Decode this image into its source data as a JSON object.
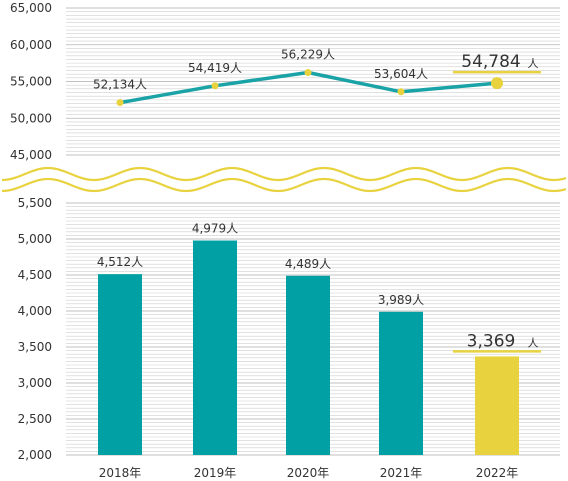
{
  "chart_data": [
    {
      "type": "line",
      "title": "",
      "xlabel": "",
      "ylabel": "",
      "categories": [
        "2018年",
        "2019年",
        "2020年",
        "2021年",
        "2022年"
      ],
      "values": [
        52134,
        54419,
        56229,
        53604,
        54784
      ],
      "data_labels": [
        "52,134人",
        "54,419人",
        "56,229人",
        "53,604人",
        "54,784"
      ],
      "highlight_unit": "人",
      "highlight_index": 4,
      "ylim": [
        45000,
        65000
      ],
      "yticks": [
        45000,
        50000,
        55000,
        60000,
        65000
      ],
      "ytick_labels": [
        "45,000",
        "50,000",
        "55,000",
        "60,000",
        "65,000"
      ],
      "grid": true,
      "line_color": "#1aa3a6",
      "marker_color": "#e8d23e"
    },
    {
      "type": "bar",
      "title": "",
      "xlabel": "",
      "ylabel": "",
      "categories": [
        "2018年",
        "2019年",
        "2020年",
        "2021年",
        "2022年"
      ],
      "values": [
        4512,
        4979,
        4489,
        3989,
        3369
      ],
      "data_labels": [
        "4,512人",
        "4,979人",
        "4,489人",
        "3,989人",
        "3,369"
      ],
      "highlight_unit": "人",
      "highlight_index": 4,
      "ylim": [
        2000,
        5500
      ],
      "yticks": [
        2000,
        2500,
        3000,
        3500,
        4000,
        4500,
        5000,
        5500
      ],
      "ytick_labels": [
        "2,000",
        "2,500",
        "3,000",
        "3,500",
        "4,000",
        "4,500",
        "5,000",
        "5,500"
      ],
      "grid": true,
      "bar_color": "#00a0a4",
      "highlight_color": "#e8d23e"
    }
  ],
  "style": {
    "grid_color": "#cfcfcf",
    "wave_color": "#e8d23e",
    "text_color": "#333333"
  }
}
